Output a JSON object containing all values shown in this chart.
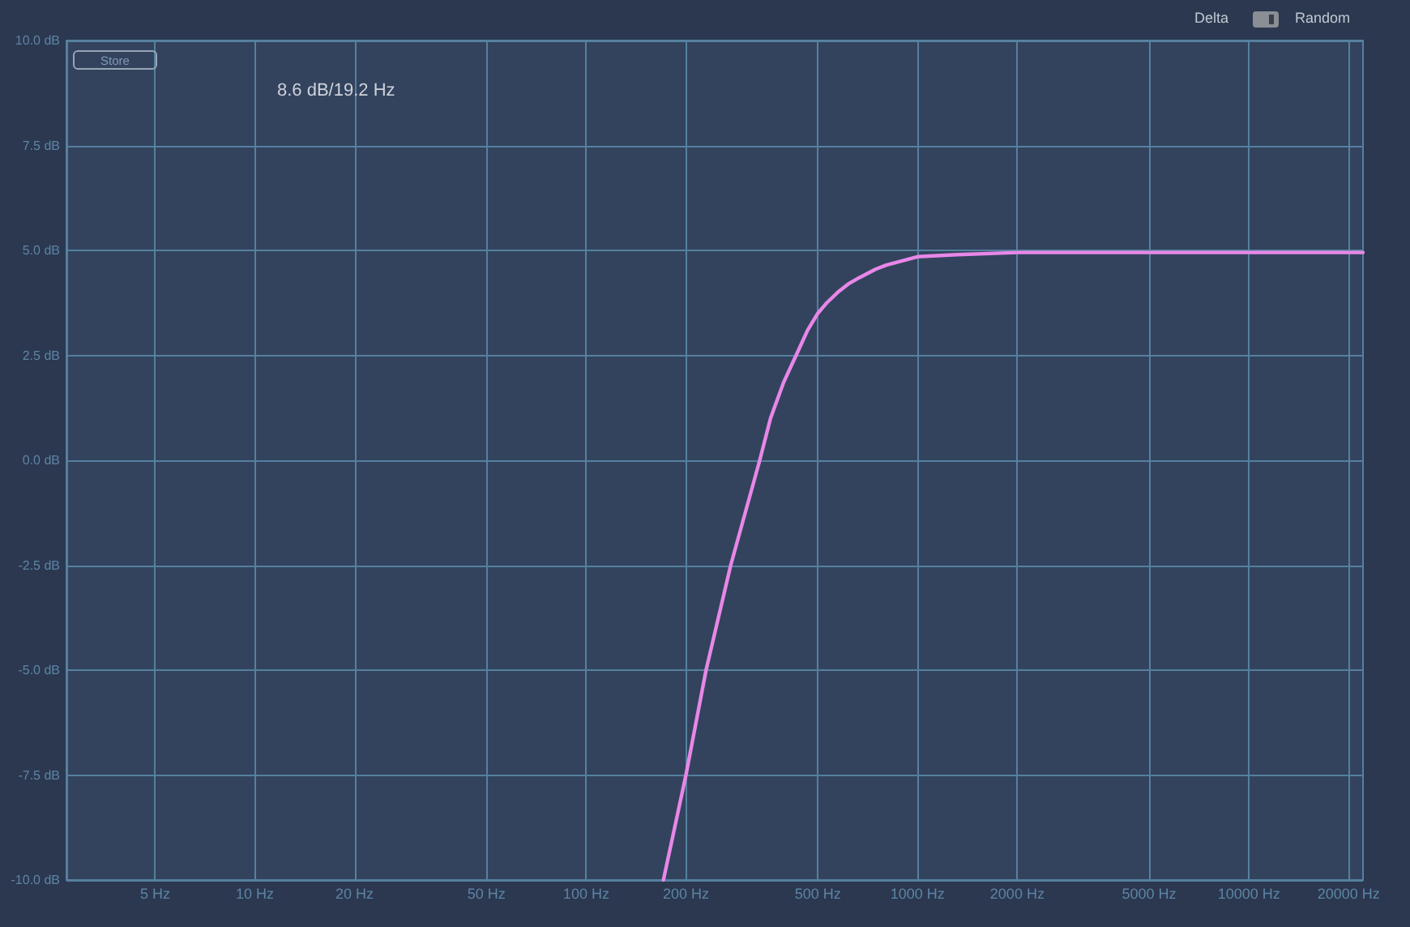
{
  "chart_data": {
    "type": "line",
    "x": [
      171,
      200,
      230,
      273,
      334,
      360,
      394,
      430,
      466,
      500,
      532,
      574,
      618,
      667,
      747,
      805,
      1000,
      1320,
      2000,
      5000,
      22100
    ],
    "values": [
      -10,
      -7.5,
      -5,
      -2.5,
      0,
      1.0,
      1.85,
      2.5,
      3.1,
      3.5,
      3.75,
      4.0,
      4.2,
      4.35,
      4.55,
      4.65,
      4.85,
      4.9,
      4.95,
      4.95,
      4.95
    ],
    "color": "#e887e8",
    "log": "x",
    "xlim": [
      2.7,
      22100
    ],
    "xticks": [
      {
        "value": 5,
        "label": "5 Hz"
      },
      {
        "value": 10,
        "label": "10 Hz"
      },
      {
        "value": 20,
        "label": "20 Hz"
      },
      {
        "value": 50,
        "label": "50 Hz"
      },
      {
        "value": 100,
        "label": "100 Hz"
      },
      {
        "value": 200,
        "label": "200 Hz"
      },
      {
        "value": 500,
        "label": "500 Hz"
      },
      {
        "value": 1000,
        "label": "1000 Hz"
      },
      {
        "value": 2000,
        "label": "2000 Hz"
      },
      {
        "value": 5000,
        "label": "5000 Hz"
      },
      {
        "value": 10000,
        "label": "10000 Hz"
      },
      {
        "value": 20000,
        "label": "20000 Hz"
      }
    ],
    "ylim": [
      -10,
      10
    ],
    "yticks": [
      {
        "value": -10,
        "label": "-10.0 dB"
      },
      {
        "value": -7.5,
        "label": "-7.5 dB"
      },
      {
        "value": -5,
        "label": "-5.0 dB"
      },
      {
        "value": -2.5,
        "label": "-2.5 dB"
      },
      {
        "value": 0,
        "label": "0.0 dB"
      },
      {
        "value": 2.5,
        "label": "2.5 dB"
      },
      {
        "value": 5,
        "label": "5.0 dB"
      },
      {
        "value": 7.5,
        "label": "7.5 dB"
      },
      {
        "value": 10,
        "label": "10.0 dB"
      }
    ],
    "grid": true,
    "annotations": [
      "Delta",
      "Random",
      "Store",
      "8.6 dB/19.2 Hz"
    ]
  }
}
